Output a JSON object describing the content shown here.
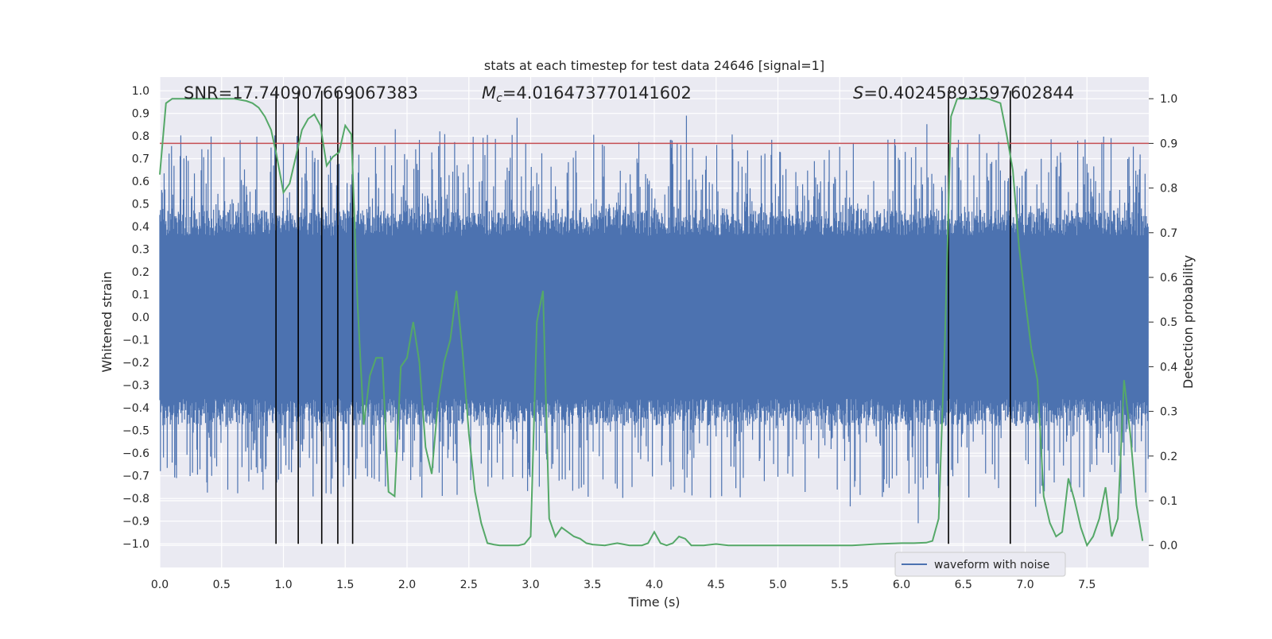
{
  "chart_data": {
    "type": "line",
    "title": "stats at each timestep for test data 24646 [signal=1]",
    "xlabel": "Time (s)",
    "ylabel_left": "Whitened strain",
    "ylabel_right": "Detection probability",
    "xlim": [
      0.0,
      8.0
    ],
    "ylim_left": [
      -1.1,
      1.05
    ],
    "ylim_right": [
      -0.05,
      1.03
    ],
    "x_ticks": [
      0.0,
      0.5,
      1.0,
      1.5,
      2.0,
      2.5,
      3.0,
      3.5,
      4.0,
      4.5,
      5.0,
      5.5,
      6.0,
      6.5,
      7.0,
      7.5
    ],
    "x_tick_labels": [
      "0.0",
      "0.5",
      "1.0",
      "1.5",
      "2.0",
      "2.5",
      "3.0",
      "3.5",
      "4.0",
      "4.5",
      "5.0",
      "5.5",
      "6.0",
      "6.5",
      "7.0",
      "7.5"
    ],
    "y_left_ticks": [
      1.0,
      0.9,
      0.8,
      0.7,
      0.6,
      0.5,
      0.4,
      0.3,
      0.2,
      0.1,
      0.0,
      -0.1,
      -0.2,
      -0.3,
      -0.4,
      -0.5,
      -0.6,
      -0.7,
      -0.8,
      -0.9,
      -1.0
    ],
    "y_left_tick_labels": [
      "1.0",
      "0.9",
      "0.8",
      "0.7",
      "0.6",
      "0.5",
      "0.4",
      "0.3",
      "0.2",
      "0.1",
      "0.0",
      "−0.1",
      "−0.2",
      "−0.3",
      "−0.4",
      "−0.5",
      "−0.6",
      "−0.7",
      "−0.8",
      "−0.9",
      "−1.0"
    ],
    "y_right_ticks": [
      1.0,
      0.9,
      0.8,
      0.7,
      0.6,
      0.5,
      0.4,
      0.3,
      0.2,
      0.1,
      0.0
    ],
    "y_right_tick_labels": [
      "1.0",
      "0.9",
      "0.8",
      "0.7",
      "0.6",
      "0.5",
      "0.4",
      "0.3",
      "0.2",
      "0.1",
      "0.0"
    ],
    "annotations": {
      "snr": "SNR=17.740907669067383",
      "mc_symbol": "M",
      "mc_sub": "c",
      "mc_value": "=4.016473770141602",
      "s_symbol": "S",
      "s_value": "=0.40245893597602844"
    },
    "threshold": {
      "value": 0.9,
      "axis": "right",
      "color": "#c44e52"
    },
    "vertical_lines": [
      0.94,
      1.12,
      1.31,
      1.44,
      1.56,
      6.38,
      6.88
    ],
    "detection_probability": {
      "name": "detection probability",
      "color": "#55a868",
      "x": [
        0.0,
        0.05,
        0.1,
        0.2,
        0.3,
        0.4,
        0.5,
        0.6,
        0.7,
        0.75,
        0.8,
        0.85,
        0.9,
        0.94,
        1.0,
        1.05,
        1.1,
        1.15,
        1.2,
        1.25,
        1.3,
        1.35,
        1.4,
        1.45,
        1.5,
        1.55,
        1.6,
        1.65,
        1.7,
        1.75,
        1.8,
        1.85,
        1.9,
        1.95,
        2.0,
        2.05,
        2.1,
        2.15,
        2.2,
        2.25,
        2.3,
        2.35,
        2.4,
        2.45,
        2.5,
        2.55,
        2.6,
        2.65,
        2.7,
        2.75,
        2.8,
        2.85,
        2.9,
        2.95,
        3.0,
        3.05,
        3.1,
        3.15,
        3.2,
        3.25,
        3.3,
        3.35,
        3.4,
        3.45,
        3.5,
        3.6,
        3.7,
        3.8,
        3.9,
        3.95,
        4.0,
        4.05,
        4.1,
        4.15,
        4.2,
        4.25,
        4.3,
        4.35,
        4.4,
        4.5,
        4.6,
        4.7,
        4.8,
        4.9,
        5.0,
        5.2,
        5.4,
        5.6,
        5.8,
        6.0,
        6.1,
        6.2,
        6.25,
        6.3,
        6.35,
        6.4,
        6.45,
        6.5,
        6.6,
        6.7,
        6.8,
        6.85,
        6.9,
        6.95,
        7.0,
        7.05,
        7.1,
        7.15,
        7.2,
        7.25,
        7.3,
        7.35,
        7.4,
        7.45,
        7.5,
        7.55,
        7.6,
        7.65,
        7.7,
        7.75,
        7.8,
        7.85,
        7.9,
        7.95
      ],
      "values": [
        0.83,
        0.99,
        1.0,
        1.0,
        1.0,
        1.0,
        1.0,
        1.0,
        0.995,
        0.99,
        0.98,
        0.96,
        0.93,
        0.88,
        0.79,
        0.81,
        0.87,
        0.93,
        0.955,
        0.965,
        0.94,
        0.85,
        0.87,
        0.88,
        0.94,
        0.92,
        0.54,
        0.27,
        0.38,
        0.42,
        0.42,
        0.12,
        0.11,
        0.4,
        0.42,
        0.5,
        0.41,
        0.22,
        0.16,
        0.32,
        0.41,
        0.46,
        0.57,
        0.43,
        0.25,
        0.12,
        0.05,
        0.005,
        0.002,
        0.0,
        0.0,
        0.0,
        0.0,
        0.003,
        0.02,
        0.5,
        0.57,
        0.06,
        0.02,
        0.04,
        0.03,
        0.02,
        0.015,
        0.005,
        0.002,
        0.0,
        0.005,
        0.0,
        0.0,
        0.005,
        0.03,
        0.005,
        0.0,
        0.005,
        0.02,
        0.015,
        0.0,
        0.0,
        0.0,
        0.003,
        0.0,
        0.0,
        0.0,
        0.0,
        0.0,
        0.0,
        0.0,
        0.0,
        0.003,
        0.005,
        0.005,
        0.006,
        0.01,
        0.06,
        0.45,
        0.96,
        1.0,
        1.0,
        1.0,
        1.0,
        0.99,
        0.92,
        0.84,
        0.67,
        0.55,
        0.44,
        0.37,
        0.11,
        0.05,
        0.02,
        0.03,
        0.15,
        0.1,
        0.04,
        0.0,
        0.02,
        0.06,
        0.13,
        0.02,
        0.06,
        0.37,
        0.25,
        0.09,
        0.01
      ]
    },
    "waveform": {
      "name": "waveform with noise",
      "color": "#4c72b0",
      "n_samples": 1600,
      "core_band": [
        -0.36,
        0.36
      ],
      "typical_peak_range": [
        -0.75,
        0.76
      ],
      "max": 0.98,
      "min": -1.0
    },
    "legend": {
      "position": "lower-right",
      "label": "waveform with noise"
    }
  }
}
